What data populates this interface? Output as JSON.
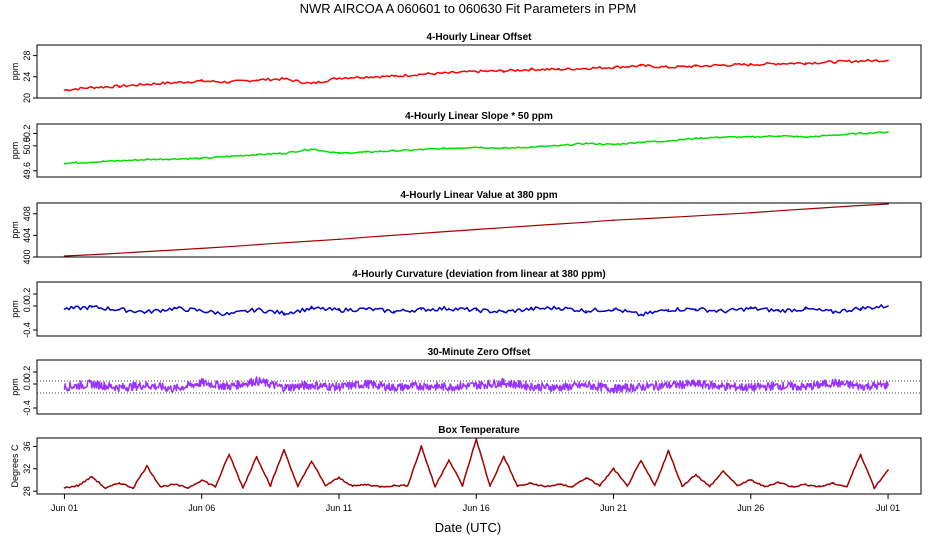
{
  "figure": {
    "title": "NWR   AIRCOA A   060601 to 060630   Fit Parameters in PPM",
    "xlabel": "Date (UTC)",
    "x_ticks": [
      "Jun 01",
      "Jun 06",
      "Jun 11",
      "Jun 16",
      "Jun 21",
      "Jun 26",
      "Jul 01"
    ],
    "x_tick_days": [
      0,
      5,
      10,
      15,
      20,
      25,
      30
    ],
    "xlim": [
      -1,
      31.2
    ]
  },
  "chart_data": [
    {
      "type": "line",
      "title": "4-Hourly Linear Offset",
      "ylabel": "ppm",
      "y_ticks": [
        "20",
        "24",
        "28"
      ],
      "y_tick_values": [
        20,
        24,
        28
      ],
      "ylim": [
        20,
        30
      ],
      "color": "#ff0000",
      "series": {
        "x": [
          0,
          1,
          2,
          3,
          4,
          5,
          6,
          7,
          8,
          9,
          10,
          11,
          12,
          13,
          14,
          15,
          16,
          17,
          18,
          19,
          20,
          21,
          22,
          23,
          24,
          25,
          26,
          27,
          28,
          29,
          30
        ],
        "y": [
          21.5,
          22.0,
          22.2,
          22.6,
          22.9,
          23.2,
          23.0,
          23.4,
          23.6,
          22.7,
          23.8,
          24.0,
          24.1,
          24.5,
          24.7,
          25.0,
          25.1,
          25.4,
          25.4,
          25.6,
          25.8,
          26.1,
          25.8,
          26.0,
          26.2,
          26.3,
          26.5,
          26.6,
          26.8,
          27.0,
          27.1
        ]
      }
    },
    {
      "type": "line",
      "title": "4-Hourly Linear Slope * 50 ppm",
      "ylabel": "ppm",
      "y_ticks": [
        "49.6",
        "50.0",
        "50.2"
      ],
      "y_tick_values": [
        49.6,
        50.0,
        50.2
      ],
      "ylim": [
        49.5,
        50.35
      ],
      "color": "#00e000",
      "series": {
        "x": [
          0,
          1,
          2,
          3,
          4,
          5,
          6,
          7,
          8,
          9,
          10,
          11,
          12,
          13,
          14,
          15,
          16,
          17,
          18,
          19,
          20,
          21,
          22,
          23,
          24,
          25,
          26,
          27,
          28,
          29,
          30
        ],
        "y": [
          49.72,
          49.74,
          49.76,
          49.78,
          49.79,
          49.8,
          49.83,
          49.86,
          49.88,
          49.95,
          49.88,
          49.9,
          49.92,
          49.94,
          49.96,
          49.98,
          49.96,
          49.98,
          50.0,
          50.04,
          50.02,
          50.06,
          50.08,
          50.12,
          50.14,
          50.14,
          50.16,
          50.14,
          50.17,
          50.2,
          50.22
        ]
      }
    },
    {
      "type": "line",
      "title": "4-Hourly Linear Value at 380 ppm",
      "ylabel": "ppm",
      "y_ticks": [
        "400",
        "404",
        "408"
      ],
      "y_tick_values": [
        400,
        404,
        408
      ],
      "ylim": [
        400,
        410
      ],
      "color": "#a00000",
      "series": {
        "x": [
          0,
          5,
          10,
          15,
          20,
          25,
          30
        ],
        "y": [
          400.1,
          401.6,
          403.3,
          405.1,
          406.8,
          408.2,
          409.9
        ]
      }
    },
    {
      "type": "line",
      "title": "4-Hourly Curvature (deviation from linear at 380 ppm)",
      "ylabel": "ppm",
      "y_ticks": [
        "-0.4",
        "0.0",
        "0.2"
      ],
      "y_tick_values": [
        -0.4,
        0.0,
        0.2
      ],
      "ylim": [
        -0.5,
        0.4
      ],
      "color": "#0000cc",
      "series": {
        "x": [
          0,
          1,
          2,
          3,
          4,
          5,
          6,
          7,
          8,
          9,
          10,
          11,
          12,
          13,
          14,
          15,
          16,
          17,
          18,
          19,
          20,
          21,
          22,
          23,
          24,
          25,
          26,
          27,
          28,
          29,
          30
        ],
        "y": [
          -0.05,
          -0.02,
          -0.06,
          -0.1,
          -0.04,
          -0.08,
          -0.14,
          -0.06,
          -0.12,
          -0.04,
          -0.07,
          -0.05,
          -0.09,
          -0.06,
          -0.04,
          -0.07,
          -0.1,
          -0.05,
          -0.03,
          -0.08,
          -0.05,
          -0.15,
          -0.06,
          -0.05,
          -0.09,
          -0.04,
          -0.08,
          -0.05,
          -0.1,
          -0.04,
          0.0
        ]
      }
    },
    {
      "type": "line",
      "title": "30-Minute Zero Offset",
      "ylabel": "ppm",
      "y_ticks": [
        "-0.4",
        "0.0",
        "0.2"
      ],
      "y_tick_values": [
        -0.4,
        0.0,
        0.2
      ],
      "ylim": [
        -0.5,
        0.4
      ],
      "color": "#9933ff",
      "reference_lines": [
        0.05,
        -0.15
      ],
      "series": {
        "x": [
          0,
          1,
          2,
          3,
          4,
          5,
          6,
          7,
          8,
          9,
          10,
          11,
          12,
          13,
          14,
          15,
          16,
          17,
          18,
          19,
          20,
          21,
          22,
          23,
          24,
          25,
          26,
          27,
          28,
          29,
          30
        ],
        "y": [
          -0.05,
          0.0,
          -0.06,
          -0.02,
          -0.08,
          0.02,
          -0.04,
          0.05,
          -0.06,
          -0.02,
          -0.05,
          0.0,
          -0.06,
          -0.03,
          -0.05,
          -0.02,
          0.02,
          -0.04,
          -0.06,
          -0.02,
          -0.08,
          -0.05,
          -0.02,
          0.0,
          -0.04,
          -0.06,
          -0.03,
          -0.05,
          0.02,
          -0.04,
          -0.02
        ]
      }
    },
    {
      "type": "line",
      "title": "Box Temperature",
      "ylabel": "Degrees C",
      "y_ticks": [
        "28",
        "32",
        "36"
      ],
      "y_tick_values": [
        28,
        32,
        36
      ],
      "ylim": [
        27.5,
        37.5
      ],
      "color": "#a00000",
      "series": {
        "x": [
          0,
          0.5,
          1,
          1.5,
          2,
          2.5,
          3,
          3.5,
          4,
          4.5,
          5,
          5.5,
          6,
          6.5,
          7,
          7.5,
          8,
          8.5,
          9,
          9.5,
          10,
          10.5,
          11,
          11.5,
          12,
          12.5,
          13,
          13.5,
          14,
          14.5,
          15,
          15.5,
          16,
          16.5,
          17,
          17.5,
          18,
          18.5,
          19,
          19.5,
          20,
          20.5,
          21,
          21.5,
          22,
          22.5,
          23,
          23.5,
          24,
          24.5,
          25,
          25.5,
          26,
          26.5,
          27,
          27.5,
          28,
          28.5,
          29,
          29.5,
          30
        ],
        "y": [
          28.6,
          29.0,
          30.6,
          28.5,
          29.5,
          28.6,
          32.5,
          28.8,
          29.2,
          28.6,
          30.0,
          28.8,
          34.6,
          28.6,
          34.2,
          29.0,
          35.4,
          28.8,
          33.4,
          29.0,
          30.4,
          28.9,
          29.2,
          28.8,
          29.0,
          29.0,
          36.0,
          28.8,
          33.6,
          29.0,
          37.3,
          28.9,
          34.2,
          28.9,
          29.4,
          28.8,
          29.2,
          28.8,
          30.4,
          29.0,
          32.0,
          28.9,
          33.4,
          29.0,
          35.2,
          28.9,
          31.0,
          28.8,
          31.6,
          29.0,
          30.0,
          28.8,
          29.6,
          28.8,
          29.2,
          28.8,
          29.4,
          28.8,
          34.6,
          28.6,
          31.8
        ]
      }
    }
  ]
}
